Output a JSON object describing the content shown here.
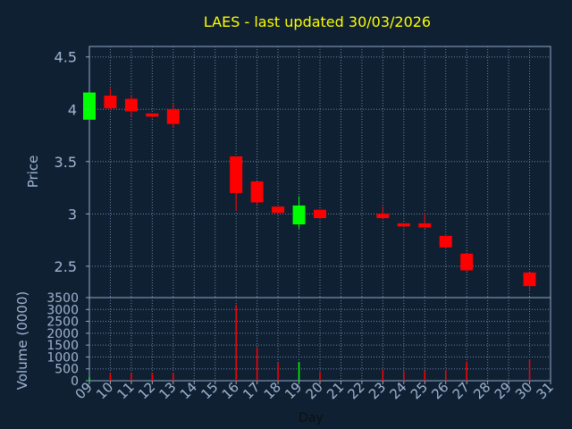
{
  "chart_data": [
    {
      "type": "candlestick",
      "title": "LAES - last updated 30/03/2026",
      "ylabel": "Price",
      "ylim": [
        2.2,
        4.6
      ],
      "yticks": [
        2.5,
        3,
        3.5,
        4,
        4.5
      ],
      "ytick_labels": [
        "2.5",
        "3",
        "3.5",
        "4",
        "4.5"
      ],
      "grid": true,
      "colors": {
        "up": "#00ff00",
        "down": "#ff0000",
        "background": "#0f2033",
        "axes": "#8fa7c2",
        "title": "#ffff00",
        "grid": "#6f86a3"
      },
      "candles": [
        {
          "day": 9,
          "open": 3.9,
          "high": 4.16,
          "low": 3.9,
          "close": 4.16
        },
        {
          "day": 10,
          "open": 4.13,
          "high": 4.2,
          "low": 4.0,
          "close": 4.01
        },
        {
          "day": 11,
          "open": 4.1,
          "high": 4.14,
          "low": 3.93,
          "close": 3.98
        },
        {
          "day": 12,
          "open": 3.96,
          "high": 3.96,
          "low": 3.92,
          "close": 3.93
        },
        {
          "day": 13,
          "open": 4.0,
          "high": 4.05,
          "low": 3.82,
          "close": 3.86
        },
        {
          "day": 16,
          "open": 3.55,
          "high": 3.55,
          "low": 3.03,
          "close": 3.2
        },
        {
          "day": 17,
          "open": 3.31,
          "high": 3.31,
          "low": 3.09,
          "close": 3.11
        },
        {
          "day": 18,
          "open": 3.07,
          "high": 3.07,
          "low": 3.0,
          "close": 3.01
        },
        {
          "day": 19,
          "open": 2.9,
          "high": 3.17,
          "low": 2.86,
          "close": 3.08
        },
        {
          "day": 20,
          "open": 3.04,
          "high": 3.04,
          "low": 2.95,
          "close": 2.96
        },
        {
          "day": 23,
          "open": 3.0,
          "high": 3.07,
          "low": 2.95,
          "close": 2.96
        },
        {
          "day": 24,
          "open": 2.91,
          "high": 2.91,
          "low": 2.87,
          "close": 2.88
        },
        {
          "day": 25,
          "open": 2.91,
          "high": 3.01,
          "low": 2.86,
          "close": 2.87
        },
        {
          "day": 26,
          "open": 2.79,
          "high": 2.79,
          "low": 2.67,
          "close": 2.68
        },
        {
          "day": 27,
          "open": 2.62,
          "high": 2.62,
          "low": 2.45,
          "close": 2.46
        },
        {
          "day": 30,
          "open": 2.44,
          "high": 2.44,
          "low": 2.26,
          "close": 2.31
        }
      ]
    },
    {
      "type": "bar",
      "ylabel": "Volume (0000)",
      "xlabel": "Day",
      "ylim": [
        0,
        3500
      ],
      "yticks": [
        0,
        500,
        1000,
        1500,
        2000,
        2500,
        3000,
        3500
      ],
      "ytick_labels": [
        "0",
        "500",
        "1000",
        "1500",
        "2000",
        "2500",
        "3000",
        "3500"
      ],
      "xlim": [
        9,
        31
      ],
      "xticks": [
        9,
        10,
        11,
        12,
        13,
        14,
        15,
        16,
        17,
        18,
        19,
        20,
        21,
        22,
        23,
        24,
        25,
        26,
        27,
        28,
        29,
        30,
        31
      ],
      "xtick_labels": [
        "09",
        "10",
        "11",
        "12",
        "13",
        "14",
        "15",
        "16",
        "17",
        "18",
        "19",
        "20",
        "21",
        "22",
        "23",
        "24",
        "25",
        "26",
        "27",
        "28",
        "29",
        "30",
        "31"
      ],
      "bars": [
        {
          "day": 9,
          "value": 150,
          "color": "#00ff00"
        },
        {
          "day": 10,
          "value": 330,
          "color": "#ff0000"
        },
        {
          "day": 11,
          "value": 320,
          "color": "#ff0000"
        },
        {
          "day": 12,
          "value": 330,
          "color": "#ff0000"
        },
        {
          "day": 13,
          "value": 330,
          "color": "#ff0000"
        },
        {
          "day": 16,
          "value": 3200,
          "color": "#ff0000"
        },
        {
          "day": 17,
          "value": 1400,
          "color": "#ff0000"
        },
        {
          "day": 18,
          "value": 750,
          "color": "#ff0000"
        },
        {
          "day": 19,
          "value": 780,
          "color": "#00ff00"
        },
        {
          "day": 20,
          "value": 380,
          "color": "#ff0000"
        },
        {
          "day": 23,
          "value": 470,
          "color": "#ff0000"
        },
        {
          "day": 24,
          "value": 400,
          "color": "#ff0000"
        },
        {
          "day": 25,
          "value": 420,
          "color": "#ff0000"
        },
        {
          "day": 26,
          "value": 450,
          "color": "#ff0000"
        },
        {
          "day": 27,
          "value": 800,
          "color": "#ff0000"
        },
        {
          "day": 30,
          "value": 900,
          "color": "#ff0000"
        }
      ]
    }
  ]
}
